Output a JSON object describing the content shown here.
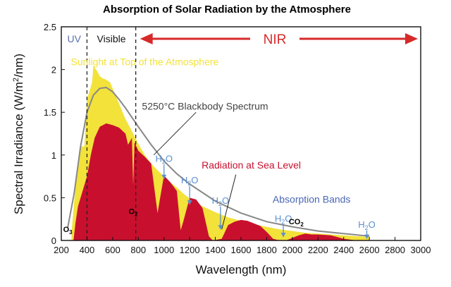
{
  "chart_data": {
    "type": "area",
    "title": "Absorption of Solar Radiation by the Atmosphere",
    "xlabel": "Wavelength (nm)",
    "ylabel_main": "Spectral Irradiance (W/m",
    "ylabel_sup": "2",
    "ylabel_tail": "/nm)",
    "xlim": [
      200,
      3000
    ],
    "ylim": [
      0,
      2.5
    ],
    "x_ticks": [
      200,
      400,
      600,
      800,
      1000,
      1200,
      1400,
      1600,
      1800,
      2000,
      2200,
      2400,
      2600,
      2800,
      3000
    ],
    "y_ticks": [
      0,
      0.5,
      1,
      1.5,
      2,
      2.5
    ],
    "y_tick_labels": [
      "0",
      "0.5",
      "1",
      "1.5",
      "2",
      "2.5"
    ],
    "grid": false,
    "regions": [
      {
        "label": "UV",
        "color": "#5a6fb0",
        "x_range": [
          200,
          400
        ]
      },
      {
        "label": "Visible",
        "color": "#111111",
        "x_range": [
          400,
          780
        ]
      },
      {
        "label": "NIR",
        "color": "#d62a2a",
        "x_range": [
          780,
          3000
        ]
      }
    ],
    "region_boundaries": [
      400,
      780
    ],
    "series": [
      {
        "name": "5250°C Blackbody Spectrum",
        "color": "#888888",
        "x": [
          250,
          300,
          350,
          400,
          450,
          500,
          550,
          600,
          650,
          700,
          800,
          900,
          1000,
          1100,
          1200,
          1400,
          1600,
          1800,
          2000,
          2200,
          2400,
          2600
        ],
        "values": [
          0.15,
          0.55,
          1.1,
          1.5,
          1.7,
          1.78,
          1.79,
          1.74,
          1.65,
          1.55,
          1.33,
          1.12,
          0.93,
          0.78,
          0.66,
          0.46,
          0.32,
          0.22,
          0.16,
          0.11,
          0.08,
          0.05
        ]
      },
      {
        "name": "Sunlight at Top of the Atmosphere",
        "color": "#f2e23a",
        "x": [
          280,
          300,
          320,
          350,
          380,
          400,
          420,
          440,
          450,
          460,
          480,
          500,
          520,
          550,
          580,
          600,
          650,
          700,
          750,
          800,
          850,
          900,
          950,
          1000,
          1050,
          1100,
          1150,
          1200,
          1300,
          1400,
          1500,
          1600,
          1700,
          1800,
          1900,
          2000,
          2100,
          2200,
          2300,
          2400,
          2500,
          2600
        ],
        "values": [
          0.1,
          0.45,
          0.75,
          1.1,
          1.1,
          1.65,
          1.75,
          1.85,
          2.05,
          2.02,
          1.98,
          1.92,
          1.9,
          1.88,
          1.85,
          1.78,
          1.6,
          1.42,
          1.28,
          1.13,
          1.0,
          0.9,
          0.82,
          0.75,
          0.68,
          0.62,
          0.55,
          0.49,
          0.4,
          0.33,
          0.27,
          0.23,
          0.19,
          0.16,
          0.13,
          0.11,
          0.09,
          0.08,
          0.07,
          0.06,
          0.05,
          0.04
        ]
      },
      {
        "name": "Radiation at Sea Level",
        "color": "#c8102e",
        "x": [
          295,
          310,
          330,
          360,
          400,
          430,
          460,
          500,
          550,
          600,
          650,
          700,
          720,
          750,
          760,
          770,
          800,
          850,
          900,
          930,
          950,
          970,
          1000,
          1050,
          1100,
          1130,
          1150,
          1200,
          1250,
          1300,
          1350,
          1380,
          1450,
          1500,
          1550,
          1600,
          1650,
          1700,
          1750,
          1800,
          1850,
          1900,
          1950,
          2000,
          2050,
          2100,
          2150,
          2200,
          2300,
          2350,
          2400,
          2450,
          2500,
          2550,
          2600
        ],
        "values": [
          0.0,
          0.2,
          0.4,
          0.55,
          0.75,
          1.0,
          1.2,
          1.33,
          1.37,
          1.35,
          1.32,
          1.25,
          1.12,
          1.2,
          0.65,
          1.15,
          1.05,
          0.98,
          0.9,
          0.55,
          0.32,
          0.5,
          0.76,
          0.68,
          0.58,
          0.12,
          0.22,
          0.5,
          0.48,
          0.38,
          0.05,
          0.0,
          0.02,
          0.18,
          0.22,
          0.24,
          0.23,
          0.2,
          0.17,
          0.1,
          0.02,
          0.0,
          0.0,
          0.03,
          0.06,
          0.08,
          0.07,
          0.07,
          0.06,
          0.04,
          0.02,
          0.01,
          0.0,
          0.0,
          0.0
        ]
      }
    ],
    "annotations": [
      {
        "text": "Sunlight at Top of the Atmosphere",
        "x": 850,
        "y": 2.05,
        "color": "#f2e23a"
      },
      {
        "text": "5250°C Blackbody Spectrum",
        "x": 1320,
        "y": 1.53,
        "color": "#444444"
      },
      {
        "text": "Radiation at Sea Level",
        "x": 1680,
        "y": 0.84,
        "color": "#c8102e"
      },
      {
        "text": "Absorption Bands",
        "x": 2150,
        "y": 0.44,
        "color": "#4a67b4"
      }
    ],
    "absorption_bands": [
      {
        "main": "H",
        "sub": "2",
        "tail": "O",
        "x": 1000,
        "y": 0.92,
        "arrow_to_y": 0.72
      },
      {
        "main": "H",
        "sub": "2",
        "tail": "O",
        "x": 1200,
        "y": 0.67,
        "arrow_to_y": 0.42
      },
      {
        "main": "H",
        "sub": "2",
        "tail": "O",
        "x": 1440,
        "y": 0.43,
        "arrow_to_y": 0.13
      },
      {
        "main": "H",
        "sub": "2",
        "tail": "O",
        "x": 1930,
        "y": 0.22,
        "arrow_to_y": 0.04
      },
      {
        "main": "H",
        "sub": "2",
        "tail": "O",
        "x": 2580,
        "y": 0.15,
        "arrow_to_y": 0.02
      }
    ],
    "molecule_labels": [
      {
        "main": "O",
        "sub": "3",
        "x": 250,
        "y": 0.1
      },
      {
        "main": "O",
        "sub": "2",
        "x": 760,
        "y": 0.31
      },
      {
        "main": "CO",
        "sub": "2",
        "x": 2030,
        "y": 0.19
      }
    ]
  }
}
